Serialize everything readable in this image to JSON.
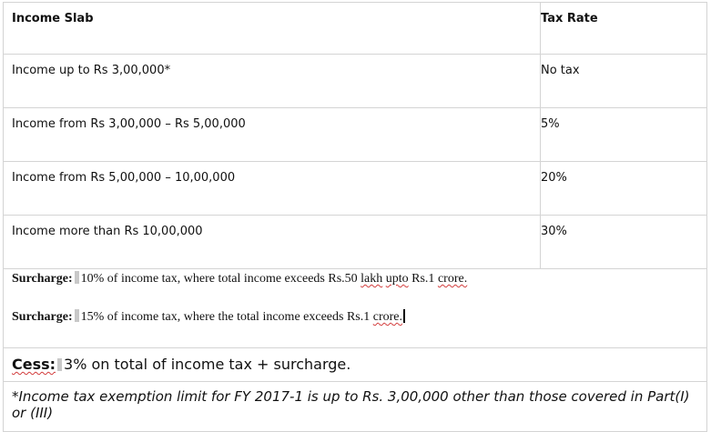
{
  "table": {
    "headers": {
      "income_slab": "Income Slab",
      "tax_rate": "Tax Rate"
    },
    "rows": [
      {
        "slab": "Income up to Rs 3,00,000*",
        "rate": "No tax"
      },
      {
        "slab": "Income from Rs 3,00,000 – Rs 5,00,000",
        "rate": "5%"
      },
      {
        "slab": "Income from Rs 5,00,000 – 10,00,000",
        "rate": "20%"
      },
      {
        "slab": "Income more than Rs 10,00,000",
        "rate": "30%"
      }
    ]
  },
  "surcharge": {
    "line1": {
      "label": "Surcharge:",
      "text_a": "10% of income tax, where total income exceeds Rs.50 ",
      "w1": "lakh",
      "sp1": " ",
      "w2": "upto",
      "text_b": " Rs.1 ",
      "w3": "crore."
    },
    "line2": {
      "label": "Surcharge:",
      "text_a": "15% of income tax, where the total income exceeds Rs.1 ",
      "w1": "crore."
    }
  },
  "cess": {
    "label": "Cess:",
    "text": "3% on total of income tax + surcharge."
  },
  "note": {
    "text": "*Income tax exemption limit for FY 2017-1 is up to Rs. 3,00,000 other than those covered in Part(I) or (III)"
  }
}
